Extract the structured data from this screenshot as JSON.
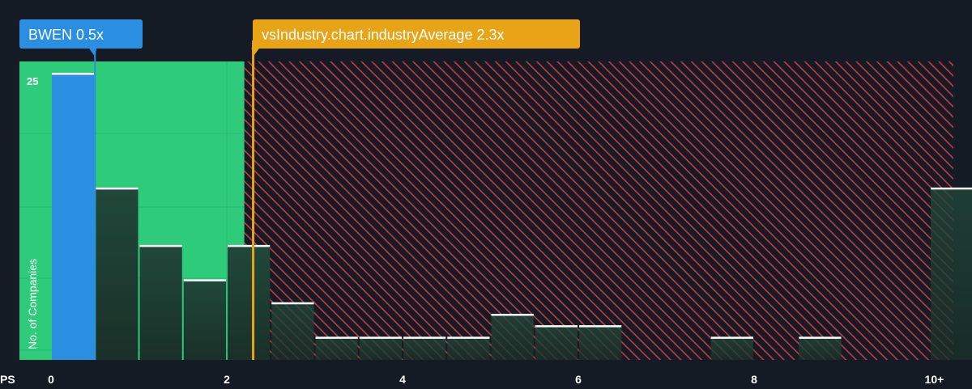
{
  "chart_data": {
    "type": "bar",
    "xlabel": "PS",
    "ylabel": "No. of Companies",
    "x_ticks": [
      "0",
      "2",
      "4",
      "6",
      "8",
      "10+"
    ],
    "y_ticks": [
      "25"
    ],
    "xlim": [
      0,
      10.5
    ],
    "ylim": [
      0,
      26
    ],
    "bins": [
      {
        "x0": 0.0,
        "x1": 0.5,
        "value": 25
      },
      {
        "x0": 0.5,
        "x1": 1.0,
        "value": 15
      },
      {
        "x0": 1.0,
        "x1": 1.5,
        "value": 10
      },
      {
        "x0": 1.5,
        "x1": 2.0,
        "value": 7
      },
      {
        "x0": 2.0,
        "x1": 2.5,
        "value": 10
      },
      {
        "x0": 2.5,
        "x1": 3.0,
        "value": 5
      },
      {
        "x0": 3.0,
        "x1": 3.5,
        "value": 2
      },
      {
        "x0": 3.5,
        "x1": 4.0,
        "value": 2
      },
      {
        "x0": 4.0,
        "x1": 4.5,
        "value": 2
      },
      {
        "x0": 4.5,
        "x1": 5.0,
        "value": 2
      },
      {
        "x0": 5.0,
        "x1": 5.5,
        "value": 4
      },
      {
        "x0": 5.5,
        "x1": 6.0,
        "value": 3
      },
      {
        "x0": 6.0,
        "x1": 6.5,
        "value": 3
      },
      {
        "x0": 6.5,
        "x1": 7.0,
        "value": 0
      },
      {
        "x0": 7.0,
        "x1": 7.5,
        "value": 0
      },
      {
        "x0": 7.5,
        "x1": 8.0,
        "value": 2
      },
      {
        "x0": 8.0,
        "x1": 8.5,
        "value": 0
      },
      {
        "x0": 8.5,
        "x1": 9.0,
        "value": 2
      },
      {
        "x0": 9.0,
        "x1": 9.5,
        "value": 0
      },
      {
        "x0": 9.5,
        "x1": 10.0,
        "value": 0
      },
      {
        "x0": 10.0,
        "x1": 10.5,
        "value": 15
      }
    ],
    "highlight_bin_index": 0,
    "fair_zone": [
      0,
      2.2
    ],
    "company": {
      "label": "BWEN 0.5x",
      "value": 0.5
    },
    "industry_average": {
      "label": "vsIndustry.chart.industryAverage 2.3x",
      "value": 2.3
    },
    "grid": true
  },
  "colors": {
    "background": "#151b24",
    "fair_zone": "#2ecc7a",
    "overvalued_stripe": "#c8393f",
    "company_bar": "#2a8fe0",
    "normal_bar": "#1f4a3a",
    "bar_cap": "#ffffff",
    "company_label_bg": "#2a8fe0",
    "industry_line": "#e8a317",
    "industry_label_bg": "#e8a317",
    "axis_text": "#ffffff"
  }
}
